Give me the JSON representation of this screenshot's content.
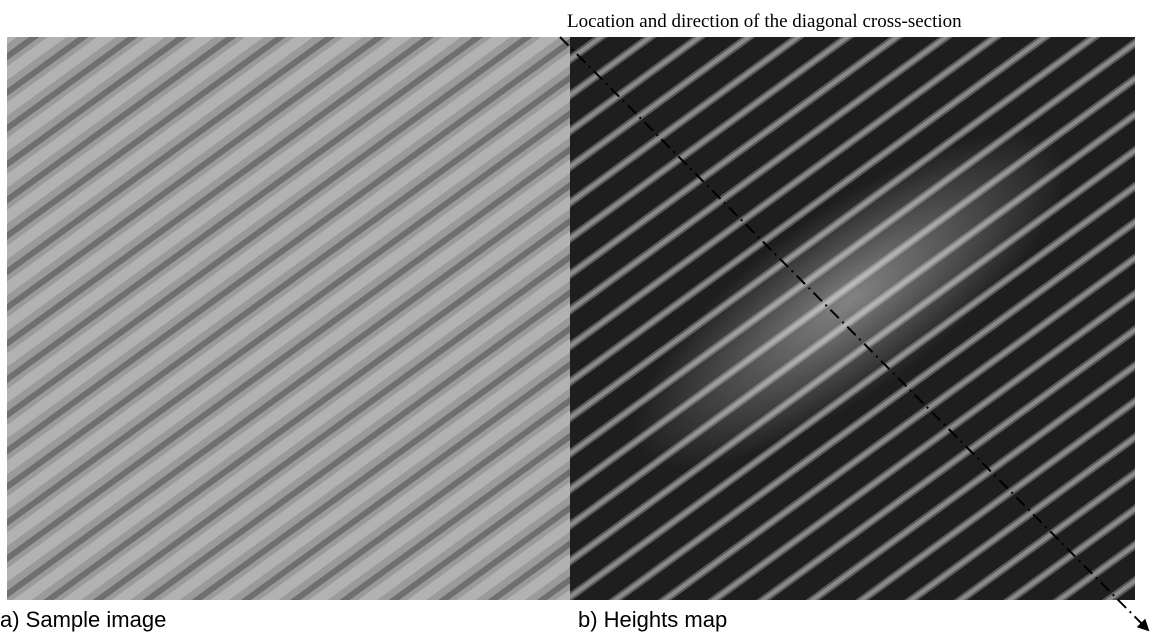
{
  "annotation": "Location and direction of the diagonal cross-section",
  "panels": [
    {
      "caption": "a) Sample image"
    },
    {
      "caption": "b) Heights map"
    }
  ]
}
